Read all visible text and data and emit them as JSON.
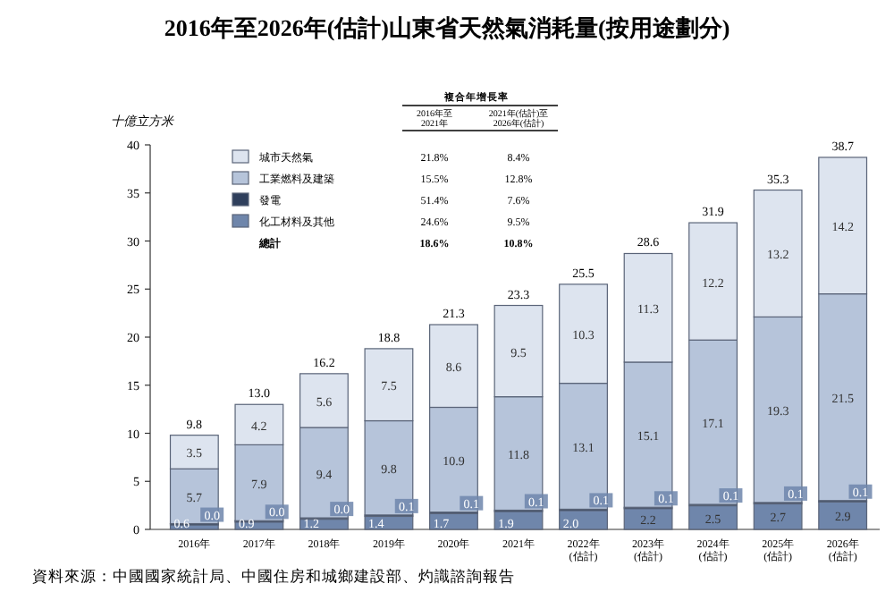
{
  "chart_data": {
    "type": "bar",
    "title": "2016年至2026年(估計)山東省天然氣消耗量(按用途劃分)",
    "ylabel": "十億立方米",
    "categories": [
      "2016年",
      "2017年",
      "2018年",
      "2019年",
      "2020年",
      "2021年",
      "2022年\n(估計)",
      "2023年\n(估計)",
      "2024年\n(估計)",
      "2025年\n(估計)",
      "2026年\n(估計)"
    ],
    "stacked": true,
    "legend": "top left",
    "grid": false,
    "ylim": [
      0,
      40
    ],
    "yticks": [
      0,
      5,
      10,
      15,
      20,
      25,
      30,
      35,
      40
    ],
    "series": [
      {
        "name": "化工材料及其他",
        "color": "#6f86ab",
        "values": [
          0.6,
          0.9,
          1.2,
          1.4,
          1.7,
          1.9,
          2.0,
          2.2,
          2.5,
          2.7,
          2.9
        ],
        "value_labels": [
          "0.6",
          "0.9",
          "1.2",
          "1.4",
          "1.7",
          "1.9",
          "2.0",
          "2.2",
          "2.5",
          "2.7",
          "2.9"
        ]
      },
      {
        "name": "發電",
        "color": "#2f3f5c",
        "values": [
          0.0,
          0.0,
          0.0,
          0.1,
          0.1,
          0.1,
          0.1,
          0.1,
          0.1,
          0.1,
          0.1
        ],
        "value_labels": [
          "0.0",
          "0.0",
          "0.0",
          "0.1",
          "0.1",
          "0.1",
          "0.1",
          "0.1",
          "0.1",
          "0.1",
          "0.1"
        ]
      },
      {
        "name": "工業燃料及建築",
        "color": "#b6c4da",
        "values": [
          5.7,
          7.9,
          9.4,
          9.8,
          10.9,
          11.8,
          13.1,
          15.1,
          17.1,
          19.3,
          21.5
        ],
        "value_labels": [
          "5.7",
          "7.9",
          "9.4",
          "9.8",
          "10.9",
          "11.8",
          "13.1",
          "15.1",
          "17.1",
          "19.3",
          "21.5"
        ]
      },
      {
        "name": "城市天然氣",
        "color": "#dde4ef",
        "values": [
          3.5,
          4.2,
          5.6,
          7.5,
          8.6,
          9.5,
          10.3,
          11.3,
          12.2,
          13.2,
          14.2
        ],
        "value_labels": [
          "3.5",
          "4.2",
          "5.6",
          "7.5",
          "8.6",
          "9.5",
          "10.3",
          "11.3",
          "12.2",
          "13.2",
          "14.2"
        ]
      }
    ],
    "totals": [
      "9.8",
      "13.0",
      "16.2",
      "18.8",
      "21.3",
      "23.3",
      "25.5",
      "28.6",
      "31.9",
      "35.3",
      "38.7"
    ],
    "annotations": [
      "複合年增長率",
      "2016年至\n2021年",
      "2021年(估計)至\n2026年(估計)",
      "24.6%",
      "9.5%",
      "51.4%",
      "7.6%",
      "15.5%",
      "12.8%",
      "21.8%",
      "8.4%",
      "總計",
      "18.6%",
      "10.8%",
      "資料來源：中國國家統計局、中國住房和城鄉建設部、灼識諮詢報告"
    ]
  }
}
